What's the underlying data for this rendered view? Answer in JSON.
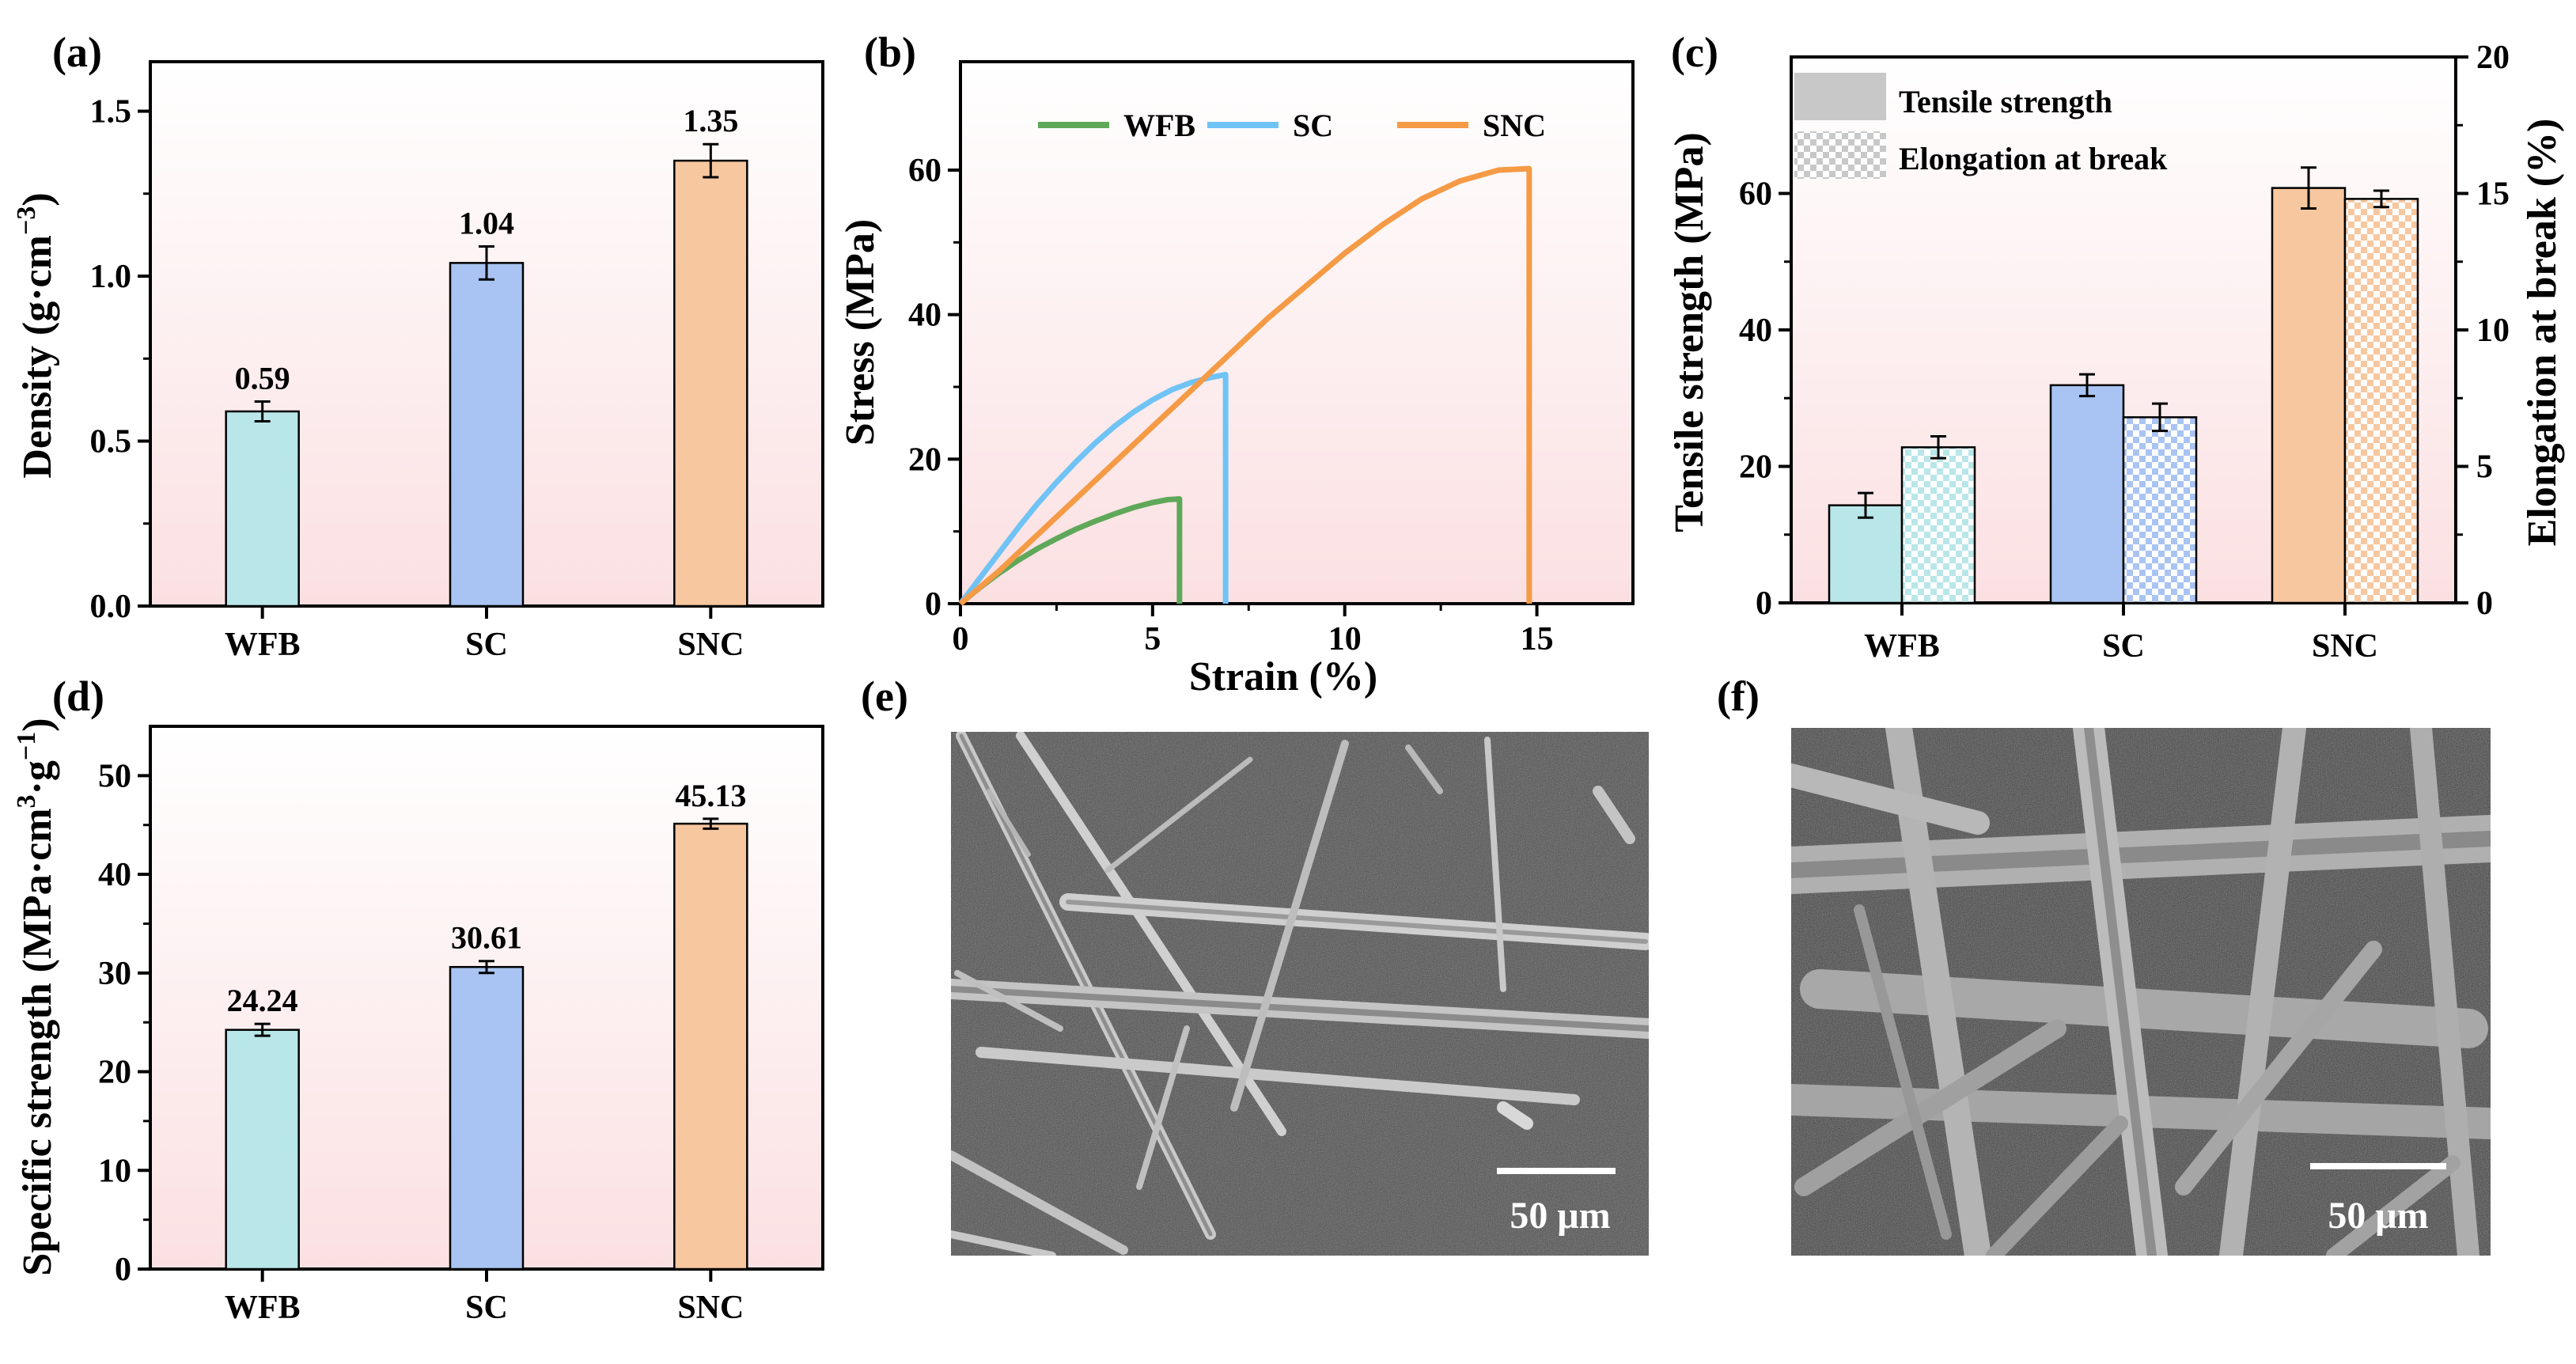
{
  "colors": {
    "WFB": "#b9e6e8",
    "SC": "#a9c4f2",
    "SNC": "#f7c7a0",
    "line_WFB": "#5fa85a",
    "line_SC": "#6fc3f5",
    "line_SNC": "#f59a45"
  },
  "panels": {
    "a": "(a)",
    "b": "(b)",
    "c": "(c)",
    "d": "(d)",
    "e": "(e)",
    "f": "(f)"
  },
  "chart_data": [
    {
      "id": "a",
      "type": "bar",
      "categories": [
        "WFB",
        "SC",
        "SNC"
      ],
      "values": [
        0.59,
        1.04,
        1.35
      ],
      "errors": [
        0.03,
        0.05,
        0.05
      ],
      "value_labels": [
        "0.59",
        "1.04",
        "1.35"
      ],
      "ylabel": "Density (g·cm",
      "ylabel_sup": "−3",
      "ylabel_close": ")",
      "ylim": [
        0,
        1.65
      ],
      "yticks": [
        0.0,
        0.5,
        1.0,
        1.5
      ],
      "ytick_labels": [
        "0.0",
        "0.5",
        "1.0",
        "1.5"
      ]
    },
    {
      "id": "b",
      "type": "line",
      "xlabel": "Strain (%)",
      "ylabel": "Stress (MPa)",
      "xlim": [
        0,
        17.5
      ],
      "ylim": [
        0,
        75
      ],
      "xticks": [
        0,
        5,
        10,
        15
      ],
      "xtick_labels": [
        "0",
        "5",
        "10",
        "15"
      ],
      "yticks": [
        0,
        20,
        40,
        60
      ],
      "ytick_labels": [
        "0",
        "20",
        "40",
        "60"
      ],
      "legend": "top",
      "series": [
        {
          "name": "WFB",
          "x": [
            0,
            0.5,
            1.0,
            1.5,
            2.0,
            2.5,
            3.0,
            3.5,
            4.0,
            4.5,
            5.0,
            5.4,
            5.7,
            5.7
          ],
          "y": [
            0,
            2.2,
            4.2,
            6.0,
            7.6,
            9.0,
            10.3,
            11.4,
            12.4,
            13.3,
            14.0,
            14.4,
            14.5,
            0
          ]
        },
        {
          "name": "SC",
          "x": [
            0,
            0.5,
            1.0,
            1.5,
            2.0,
            2.5,
            3.0,
            3.5,
            4.0,
            4.5,
            5.0,
            5.5,
            6.0,
            6.5,
            6.9,
            6.9
          ],
          "y": [
            0,
            3.5,
            7.0,
            10.5,
            13.8,
            16.8,
            19.6,
            22.2,
            24.5,
            26.5,
            28.2,
            29.6,
            30.6,
            31.3,
            31.7,
            0
          ]
        },
        {
          "name": "SNC",
          "x": [
            0,
            1,
            2,
            3,
            4,
            5,
            6,
            7,
            8,
            9,
            10,
            11,
            12,
            13,
            14,
            14.8,
            14.8
          ],
          "y": [
            0,
            4.5,
            9.5,
            14.5,
            19.5,
            24.5,
            29.5,
            34.5,
            39.5,
            44.0,
            48.5,
            52.5,
            56.0,
            58.5,
            60.0,
            60.2,
            0
          ]
        }
      ]
    },
    {
      "id": "c",
      "type": "bar",
      "categories": [
        "WFB",
        "SC",
        "SNC"
      ],
      "series": [
        {
          "name": "Tensile strength",
          "axis": "left",
          "values": [
            14.3,
            31.9,
            60.8
          ],
          "errors": [
            1.8,
            1.6,
            3.0
          ]
        },
        {
          "name": "Elongation at break",
          "axis": "right",
          "values": [
            5.7,
            6.8,
            14.8
          ],
          "errors": [
            0.4,
            0.5,
            0.3
          ]
        }
      ],
      "ylabel": "Tensile strength (MPa)",
      "ylabel_right": "Elongation at break (%)",
      "ylim": [
        0,
        80
      ],
      "ylim_right": [
        0,
        20
      ],
      "yticks": [
        0,
        20,
        40,
        60
      ],
      "ytick_labels": [
        "0",
        "20",
        "40",
        "60"
      ],
      "yticks_right": [
        0,
        5,
        10,
        15,
        20
      ],
      "ytick_labels_right": [
        "0",
        "5",
        "10",
        "15",
        "20"
      ],
      "legend": "top-left"
    },
    {
      "id": "d",
      "type": "bar",
      "categories": [
        "WFB",
        "SC",
        "SNC"
      ],
      "values": [
        24.24,
        30.61,
        45.13
      ],
      "errors": [
        0.6,
        0.6,
        0.5
      ],
      "value_labels": [
        "24.24",
        "30.61",
        "45.13"
      ],
      "ylabel": "Specific strength (MPa·cm",
      "ylabel_sup1": "3",
      "ylabel_mid": "·g",
      "ylabel_sup2": "−1",
      "ylabel_close": ")",
      "ylim": [
        0,
        55
      ],
      "yticks": [
        0,
        10,
        20,
        30,
        40,
        50
      ],
      "ytick_labels": [
        "0",
        "10",
        "20",
        "30",
        "40",
        "50"
      ]
    }
  ],
  "sem": {
    "e_scale": "50 μm",
    "f_scale": "50 μm"
  }
}
